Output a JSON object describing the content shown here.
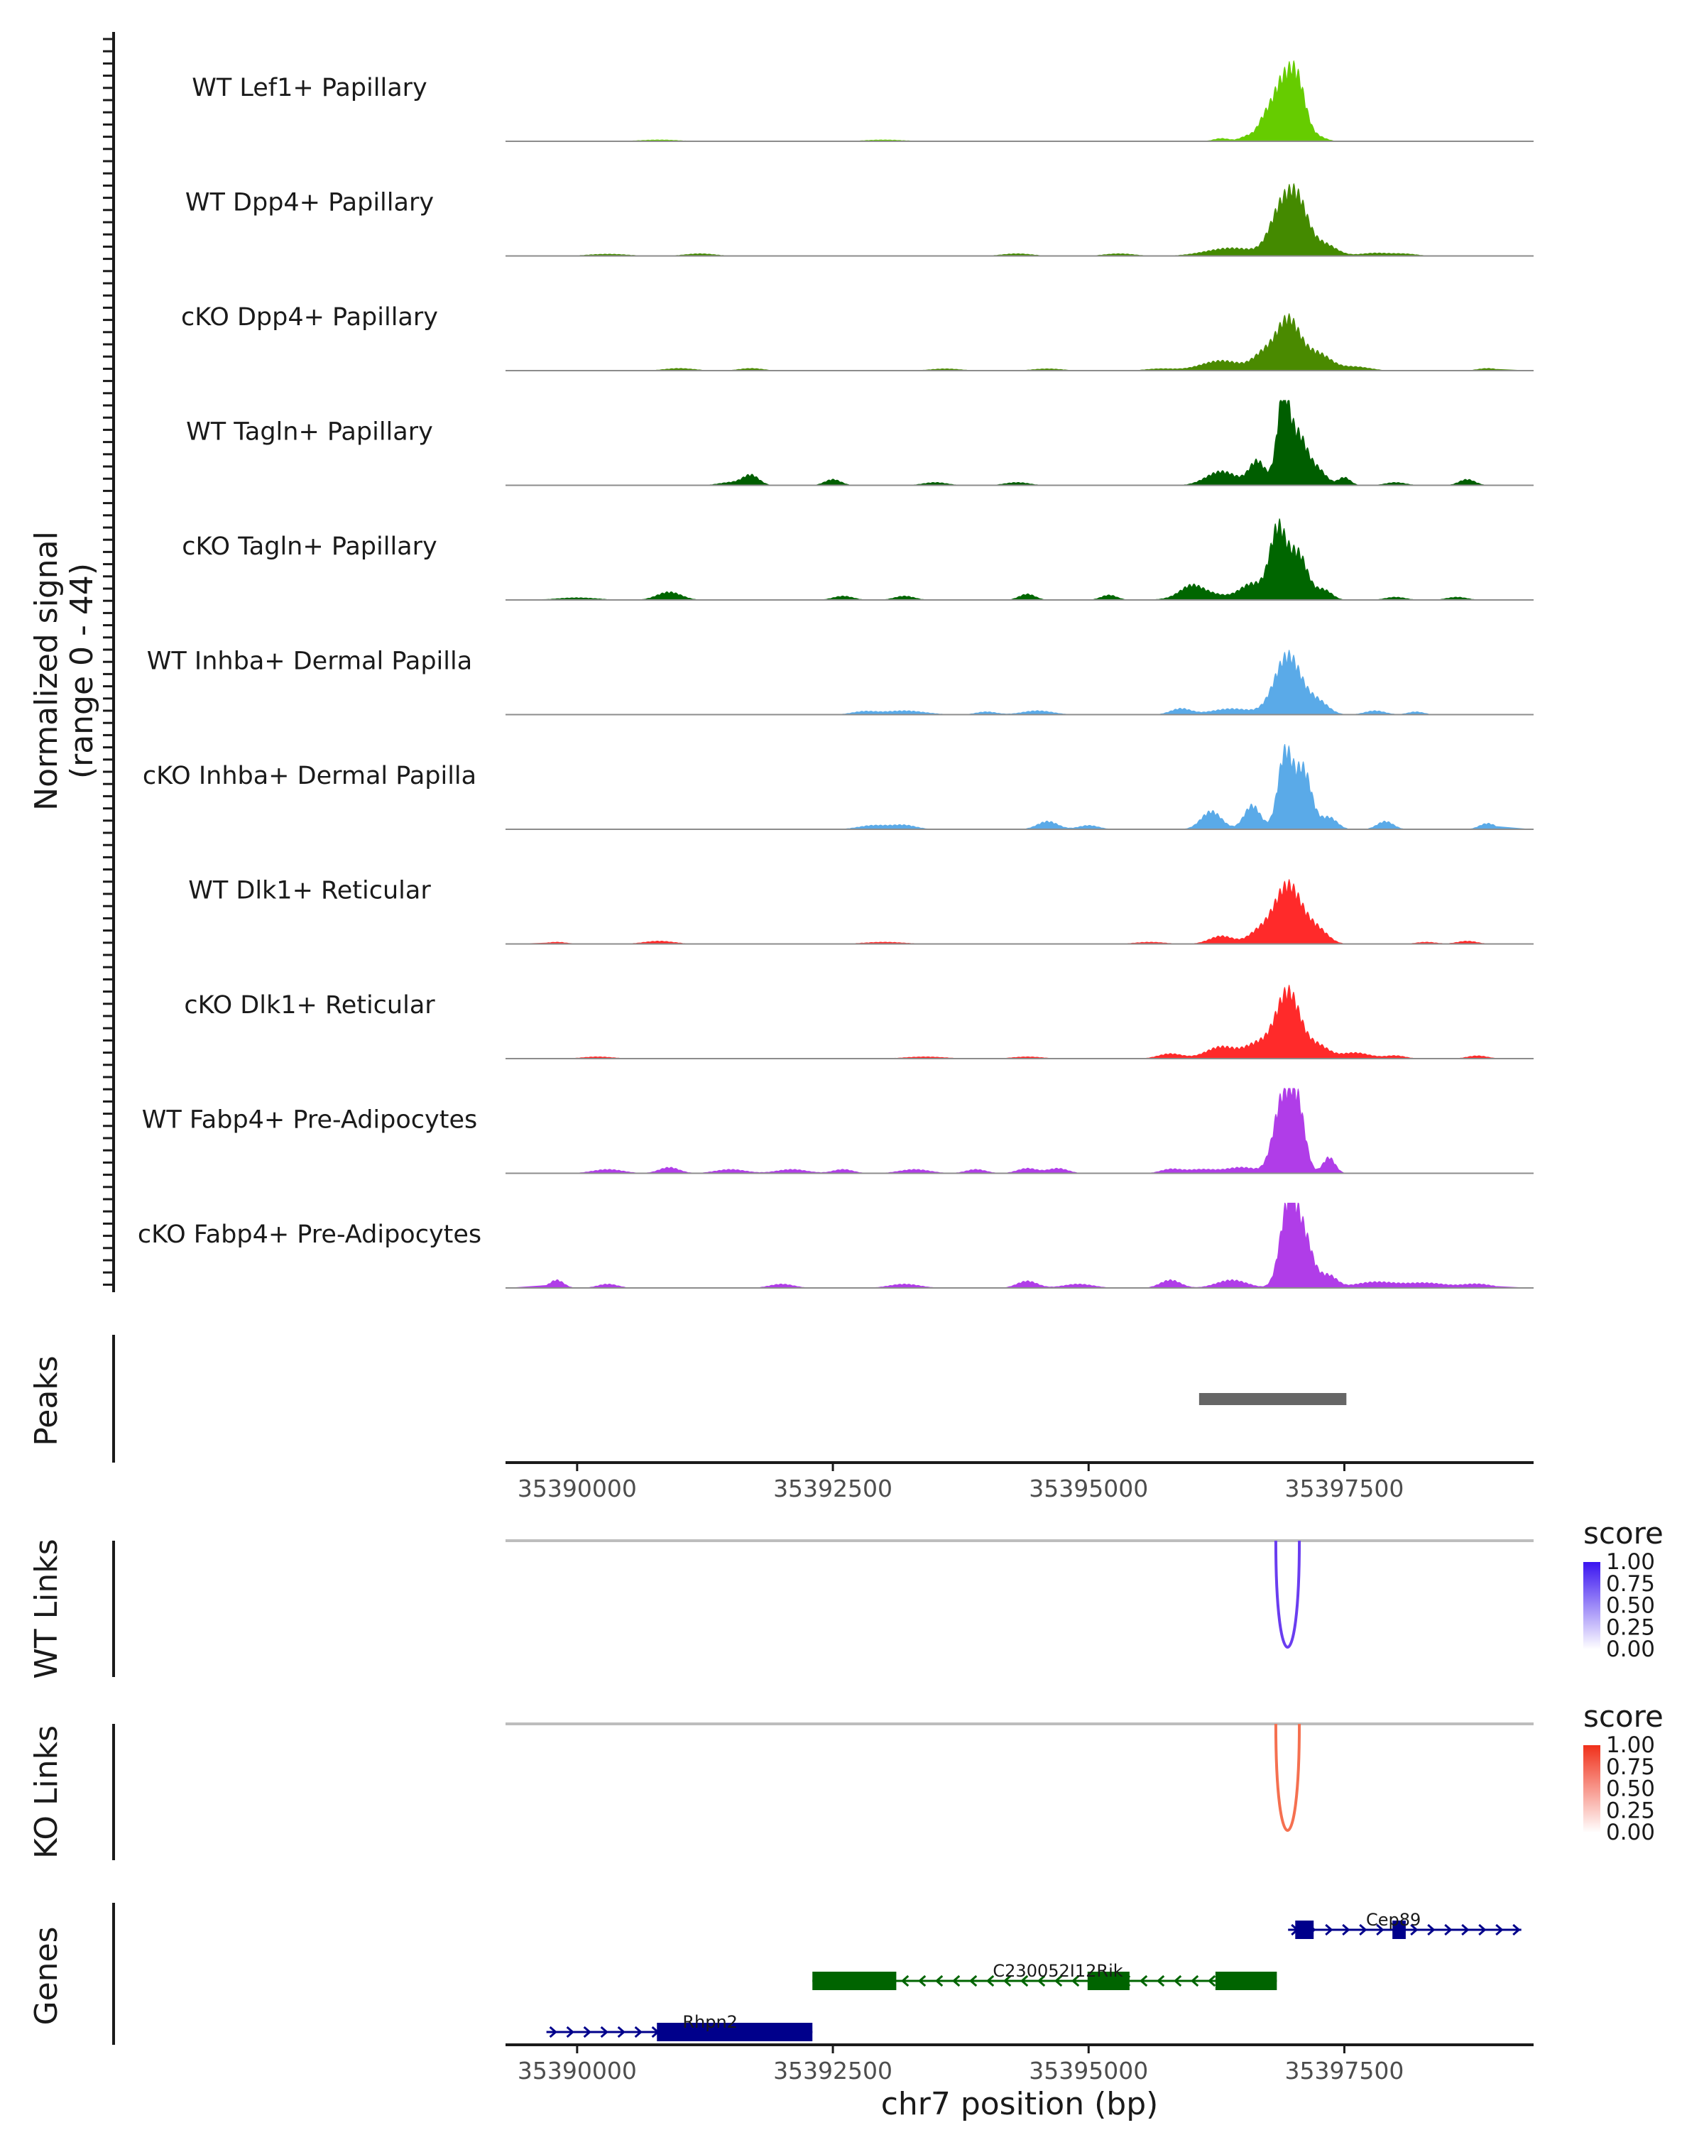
{
  "chart_data": {
    "type": "area",
    "title": "",
    "region": {
      "chrom": "chr7",
      "start": 35389300,
      "end": 35399350
    },
    "xlabel": "chr7 position (bp)",
    "ylabel_line1": "Normalized signal",
    "ylabel_line2": "(range 0 - 44)",
    "ylim": [
      0,
      44
    ],
    "x_ticks": [
      {
        "value": 35390000,
        "label": "35390000"
      },
      {
        "value": 35392500,
        "label": "35392500"
      },
      {
        "value": 35395000,
        "label": "35395000"
      },
      {
        "value": 35397500,
        "label": "35397500"
      }
    ],
    "coverage_tracks": [
      {
        "name": "WT Lef1+ Papillary",
        "color": "#66cc00",
        "bumps": [
          [
            35396300,
            80,
            1.5
          ],
          [
            35396550,
            70,
            2.5
          ],
          [
            35396700,
            60,
            5
          ],
          [
            35396900,
            120,
            30
          ],
          [
            35397050,
            80,
            20
          ],
          [
            35397250,
            80,
            2
          ],
          [
            35390800,
            200,
            0.8
          ],
          [
            35393000,
            200,
            0.8
          ]
        ]
      },
      {
        "name": "WT Dpp4+ Papillary",
        "color": "#448a00",
        "bumps": [
          [
            35396400,
            250,
            4
          ],
          [
            35396880,
            110,
            22
          ],
          [
            35397050,
            100,
            24
          ],
          [
            35397300,
            120,
            6
          ],
          [
            35390300,
            200,
            1
          ],
          [
            35391200,
            150,
            1.2
          ],
          [
            35394300,
            150,
            1.2
          ],
          [
            35395300,
            150,
            1.2
          ],
          [
            35397800,
            150,
            1.5
          ],
          [
            35398100,
            120,
            1
          ]
        ]
      },
      {
        "name": "cKO Dpp4+ Papillary",
        "color": "#4a8a00",
        "bumps": [
          [
            35396300,
            200,
            5
          ],
          [
            35396700,
            100,
            7
          ],
          [
            35396950,
            120,
            26
          ],
          [
            35397250,
            120,
            8
          ],
          [
            35397600,
            150,
            2
          ],
          [
            35391000,
            150,
            1.2
          ],
          [
            35391700,
            120,
            1.2
          ],
          [
            35393600,
            150,
            1
          ],
          [
            35394600,
            150,
            1
          ],
          [
            35395700,
            150,
            1
          ],
          [
            35398900,
            100,
            1.2
          ]
        ]
      },
      {
        "name": "WT Tagln+ Papillary",
        "color": "#005e00",
        "bumps": [
          [
            35396300,
            150,
            7
          ],
          [
            35396650,
            80,
            12
          ],
          [
            35396900,
            60,
            42
          ],
          [
            35397050,
            90,
            25
          ],
          [
            35397250,
            80,
            7
          ],
          [
            35391700,
            80,
            5
          ],
          [
            35392500,
            80,
            3
          ],
          [
            35391500,
            120,
            1.5
          ],
          [
            35393500,
            120,
            1.5
          ],
          [
            35394300,
            120,
            1.5
          ],
          [
            35397500,
            60,
            4
          ],
          [
            35398700,
            80,
            3
          ],
          [
            35398000,
            100,
            1.5
          ]
        ]
      },
      {
        "name": "cKO Tagln+ Papillary",
        "color": "#006600",
        "bumps": [
          [
            35396100,
            200,
            4
          ],
          [
            35396600,
            120,
            8
          ],
          [
            35396850,
            80,
            35
          ],
          [
            35397050,
            90,
            23
          ],
          [
            35397300,
            80,
            5
          ],
          [
            35390900,
            120,
            4
          ],
          [
            35390000,
            200,
            1.2
          ],
          [
            35392600,
            100,
            2
          ],
          [
            35393200,
            100,
            2
          ],
          [
            35394400,
            80,
            3
          ],
          [
            35395200,
            80,
            2.5
          ],
          [
            35396000,
            100,
            4
          ],
          [
            35398000,
            100,
            1.5
          ],
          [
            35398600,
            100,
            1.5
          ]
        ]
      },
      {
        "name": "WT Inhba+ Dermal Papilla",
        "color": "#5aaae8",
        "bumps": [
          [
            35395900,
            100,
            3
          ],
          [
            35396400,
            200,
            3
          ],
          [
            35396950,
            130,
            30
          ],
          [
            35397250,
            100,
            6
          ],
          [
            35393200,
            200,
            2
          ],
          [
            35392800,
            120,
            1.5
          ],
          [
            35394000,
            100,
            1.5
          ],
          [
            35394500,
            150,
            2
          ],
          [
            35397800,
            100,
            2
          ],
          [
            35398200,
            80,
            1.5
          ]
        ]
      },
      {
        "name": "cKO Inhba+ Dermal Papilla",
        "color": "#5aaae8",
        "bumps": [
          [
            35396200,
            100,
            9
          ],
          [
            35396600,
            80,
            12
          ],
          [
            35396920,
            70,
            38
          ],
          [
            35397100,
            80,
            30
          ],
          [
            35397350,
            80,
            6
          ],
          [
            35392900,
            150,
            2
          ],
          [
            35393200,
            120,
            2
          ],
          [
            35394600,
            100,
            4
          ],
          [
            35395000,
            100,
            2
          ],
          [
            35397900,
            80,
            4
          ],
          [
            35398900,
            80,
            3
          ]
        ]
      },
      {
        "name": "WT Dlk1+ Reticular",
        "color": "#ff2a2a",
        "bumps": [
          [
            35396300,
            120,
            4
          ],
          [
            35396650,
            100,
            5
          ],
          [
            35396950,
            140,
            30
          ],
          [
            35397250,
            100,
            6
          ],
          [
            35389800,
            100,
            1
          ],
          [
            35390800,
            150,
            1.5
          ],
          [
            35393000,
            200,
            1
          ],
          [
            35395600,
            150,
            1
          ],
          [
            35398300,
            100,
            1
          ],
          [
            35398700,
            100,
            1.5
          ]
        ]
      },
      {
        "name": "cKO Dlk1+ Reticular",
        "color": "#ff2a2a",
        "bumps": [
          [
            35396300,
            150,
            6
          ],
          [
            35396650,
            120,
            7
          ],
          [
            35396950,
            120,
            34
          ],
          [
            35397250,
            100,
            6
          ],
          [
            35397600,
            150,
            3
          ],
          [
            35390200,
            150,
            1
          ],
          [
            35393400,
            200,
            1
          ],
          [
            35394400,
            150,
            1
          ],
          [
            35395800,
            120,
            2.5
          ],
          [
            35398000,
            100,
            1.5
          ],
          [
            35398800,
            100,
            1.5
          ]
        ]
      },
      {
        "name": "WT Fabp4+ Pre-Adipocytes",
        "color": "#b03de8",
        "bumps": [
          [
            35396100,
            150,
            2
          ],
          [
            35396500,
            150,
            3
          ],
          [
            35396900,
            90,
            38
          ],
          [
            35397050,
            70,
            30
          ],
          [
            35397350,
            60,
            8
          ],
          [
            35390300,
            150,
            2
          ],
          [
            35390900,
            100,
            3
          ],
          [
            35391500,
            150,
            2
          ],
          [
            35392100,
            150,
            2
          ],
          [
            35392600,
            100,
            2
          ],
          [
            35393300,
            150,
            2
          ],
          [
            35393900,
            100,
            2
          ],
          [
            35394400,
            100,
            2.5
          ],
          [
            35394700,
            100,
            2.5
          ],
          [
            35395800,
            100,
            2
          ]
        ]
      },
      {
        "name": "cKO Fabp4+ Pre-Adipocytes",
        "color": "#b03de8",
        "bumps": [
          [
            35389800,
            70,
            4
          ],
          [
            35390300,
            100,
            2
          ],
          [
            35392000,
            120,
            2
          ],
          [
            35393200,
            150,
            2
          ],
          [
            35394400,
            100,
            3.5
          ],
          [
            35394900,
            150,
            2
          ],
          [
            35395800,
            100,
            4
          ],
          [
            35396400,
            150,
            4
          ],
          [
            35396950,
            80,
            40
          ],
          [
            35397100,
            90,
            26
          ],
          [
            35397350,
            80,
            6
          ],
          [
            35397800,
            200,
            3
          ],
          [
            35398300,
            200,
            2.5
          ],
          [
            35398800,
            150,
            2
          ]
        ]
      }
    ],
    "peaks": {
      "label": "Peaks",
      "color": "#666666",
      "regions": [
        {
          "start": 35396080,
          "end": 35397520
        }
      ]
    },
    "links": [
      {
        "label": "WT Links",
        "color": "#6a3df0",
        "legend_title": "score",
        "legend_ticks": [
          "1.00",
          "0.75",
          "0.50",
          "0.25",
          "0.00"
        ],
        "legend_colors": [
          "#3a14f0",
          "#ffffff"
        ],
        "arcs": [
          {
            "start": 35396830,
            "end": 35397060,
            "score": 0.8
          }
        ]
      },
      {
        "label": "KO Links",
        "color": "#f57050",
        "legend_title": "score",
        "legend_ticks": [
          "1.00",
          "0.75",
          "0.50",
          "0.25",
          "0.00"
        ],
        "legend_colors": [
          "#f0301a",
          "#ffffff"
        ],
        "arcs": [
          {
            "start": 35396830,
            "end": 35397060,
            "score": 0.7
          }
        ]
      }
    ],
    "genes": {
      "label": "Genes",
      "items": [
        {
          "name": "Cep89",
          "strand": "+",
          "color": "#00008b",
          "start": 35396950,
          "end": 35399230,
          "exons": [
            [
              35397020,
              35397200
            ],
            [
              35397970,
              35398100
            ]
          ]
        },
        {
          "name": "C230052I12Rik",
          "strand": "-",
          "color": "#006400",
          "start": 35392300,
          "end": 35396840,
          "exons": [
            [
              35392300,
              35393120
            ],
            [
              35394990,
              35395400
            ],
            [
              35396240,
              35396840
            ]
          ]
        },
        {
          "name": "Rhpn2",
          "strand": "+",
          "color": "#00008b",
          "start": 35389700,
          "end": 35392300,
          "exons": [
            [
              35390780,
              35392300
            ]
          ]
        }
      ]
    }
  }
}
